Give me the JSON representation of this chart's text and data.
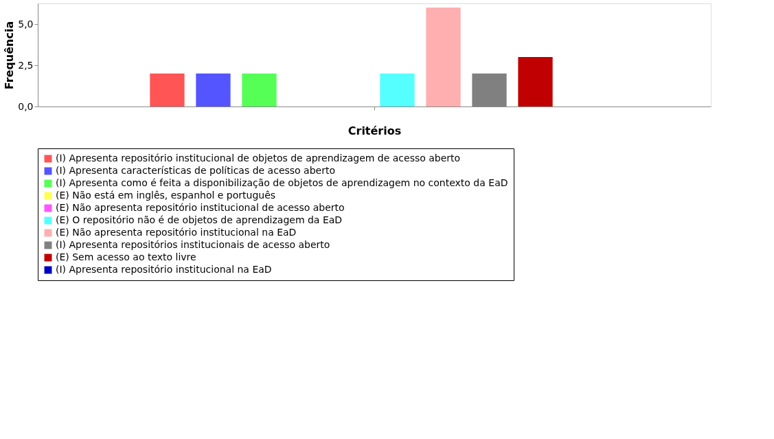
{
  "chart_data": {
    "type": "bar",
    "xlabel": "Critérios",
    "ylabel": "Frequência",
    "categories": [
      null
    ],
    "series": [
      {
        "name": "(I) Apresenta repositório institucional de objetos de aprendizagem de acesso aberto",
        "color": "#ff5555",
        "values": [
          2
        ]
      },
      {
        "name": "(I) Apresenta características de políticas de acesso aberto",
        "color": "#5555ff",
        "values": [
          2
        ]
      },
      {
        "name": "(I) Apresenta como é feita a disponibilização de objetos de aprendizagem no contexto da EaD",
        "color": "#55ff55",
        "values": [
          2
        ]
      },
      {
        "name": "(E) Não está em inglês, espanhol e português",
        "color": "#ffff55",
        "values": [
          0
        ]
      },
      {
        "name": "(E) Não apresenta repositório institucional de acesso aberto",
        "color": "#ff55ff",
        "values": [
          0
        ]
      },
      {
        "name": "(E) O repositório não é de objetos de aprendizagem da EaD",
        "color": "#55ffff",
        "values": [
          2
        ]
      },
      {
        "name": "(E) Não apresenta repositório institucional na EaD",
        "color": "#ffafaf",
        "values": [
          6
        ]
      },
      {
        "name": "(I) Apresenta repositórios institucionais de acesso aberto",
        "color": "#808080",
        "values": [
          2
        ]
      },
      {
        "name": "(E) Sem acesso ao texto livre",
        "color": "#c00000",
        "values": [
          3
        ]
      },
      {
        "name": "(I) Apresenta repositório institucional na EaD",
        "color": "#0000c0",
        "values": [
          0
        ]
      }
    ],
    "ylim": [
      0,
      6.25
    ],
    "yticks": [
      {
        "value": 0,
        "label": "0,0"
      },
      {
        "value": 2.5,
        "label": "2,5"
      },
      {
        "value": 5,
        "label": "5,0"
      }
    ],
    "grid": "y",
    "legend": "bottom"
  }
}
